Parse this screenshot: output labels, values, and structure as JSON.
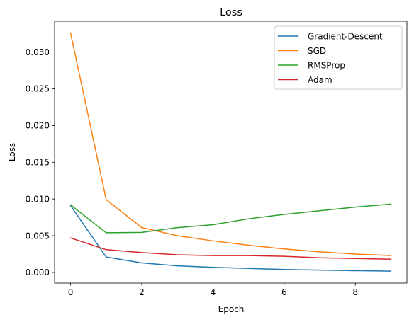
{
  "chart_data": {
    "type": "line",
    "title": "Loss",
    "xlabel": "Epoch",
    "ylabel": "Loss",
    "x": [
      0,
      1,
      2,
      3,
      4,
      5,
      6,
      7,
      8,
      9
    ],
    "xlim": [
      -0.45,
      9.45
    ],
    "ylim": [
      -0.00145,
      0.0342
    ],
    "xticks": [
      0,
      2,
      4,
      6,
      8
    ],
    "xtick_labels": [
      "0",
      "2",
      "4",
      "6",
      "8"
    ],
    "yticks": [
      0.0,
      0.005,
      0.01,
      0.015,
      0.02,
      0.025,
      0.03
    ],
    "ytick_labels": [
      "0.000",
      "0.005",
      "0.010",
      "0.015",
      "0.020",
      "0.025",
      "0.030"
    ],
    "grid": false,
    "legend_position": "top-right",
    "series": [
      {
        "name": "Gradient-Descent",
        "color": "#1f77b4",
        "values": [
          0.0091,
          0.0021,
          0.0013,
          0.0009,
          0.0007,
          0.00055,
          0.0004,
          0.00032,
          0.00024,
          0.00018
        ]
      },
      {
        "name": "SGD",
        "color": "#ff7f0e",
        "values": [
          0.0326,
          0.0099,
          0.0061,
          0.005,
          0.0043,
          0.0037,
          0.0032,
          0.0028,
          0.0025,
          0.0023
        ]
      },
      {
        "name": "RMSProp",
        "color": "#2ca02c",
        "values": [
          0.0092,
          0.0054,
          0.00545,
          0.0061,
          0.0065,
          0.0073,
          0.0079,
          0.0084,
          0.0089,
          0.0093
        ]
      },
      {
        "name": "Adam",
        "color": "#d62728",
        "values": [
          0.0047,
          0.0031,
          0.0027,
          0.0024,
          0.0023,
          0.0023,
          0.0022,
          0.002,
          0.0019,
          0.0018
        ]
      }
    ]
  }
}
